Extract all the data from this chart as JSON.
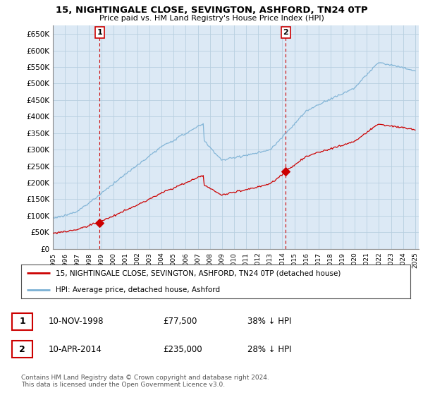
{
  "title": "15, NIGHTINGALE CLOSE, SEVINGTON, ASHFORD, TN24 0TP",
  "subtitle": "Price paid vs. HM Land Registry's House Price Index (HPI)",
  "sale1_date": "10-NOV-1998",
  "sale1_price": 77500,
  "sale2_date": "10-APR-2014",
  "sale2_price": 235000,
  "sale1_note": "38% ↓ HPI",
  "sale2_note": "28% ↓ HPI",
  "red_line_color": "#cc0000",
  "blue_line_color": "#7ab0d4",
  "chart_bg_color": "#dce9f5",
  "background_color": "#ffffff",
  "grid_color": "#b8cfe0",
  "ylim": [
    0,
    675000
  ],
  "legend_label1": "15, NIGHTINGALE CLOSE, SEVINGTON, ASHFORD, TN24 0TP (detached house)",
  "legend_label2": "HPI: Average price, detached house, Ashford",
  "footer": "Contains HM Land Registry data © Crown copyright and database right 2024.\nThis data is licensed under the Open Government Licence v3.0.",
  "sale1_year": 1998.87,
  "sale2_year": 2014.28,
  "hpi_1995": 92000,
  "hpi_2025": 550000
}
